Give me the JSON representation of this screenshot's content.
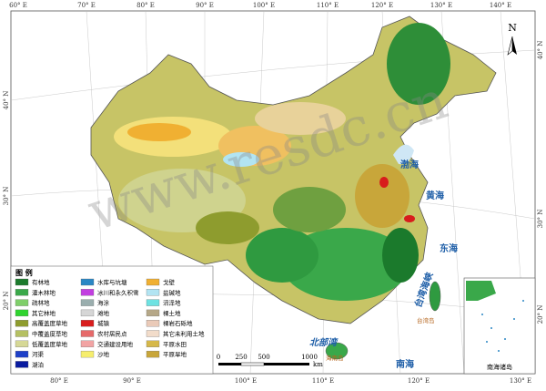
{
  "map": {
    "graticule": {
      "top": [
        "60° E",
        "70° E",
        "80° E",
        "90° E",
        "100° E",
        "110° E",
        "120° E",
        "130° E",
        "140° E"
      ],
      "bottom": [
        "80° E",
        "90° E",
        "100° E",
        "110° E",
        "120° E",
        "130° E"
      ],
      "left": [
        "40° N",
        "30° N",
        "20° N"
      ],
      "right": [
        "40° N",
        "30° N",
        "20° N"
      ]
    },
    "north": "N",
    "watermark": "www.resdc.cn",
    "seas": [
      "渤海",
      "黄海",
      "东海",
      "台湾海峡",
      "南海",
      "北部湾"
    ],
    "islands": [
      "海南岛",
      "台湾岛"
    ],
    "inset_label": "南海诸岛",
    "scale": {
      "ticks": [
        "0",
        "250",
        "500",
        "1000"
      ],
      "unit": "km"
    },
    "legend": {
      "title": "图 例",
      "items": [
        {
          "label": "有林地",
          "color": "#1b7a2c"
        },
        {
          "label": "灌木林地",
          "color": "#3aa84a"
        },
        {
          "label": "疏林地",
          "color": "#7fcf6a"
        },
        {
          "label": "其它林地",
          "color": "#2fd42f"
        },
        {
          "label": "高覆盖度草地",
          "color": "#8e9c2e"
        },
        {
          "label": "中覆盖度草地",
          "color": "#b5c062"
        },
        {
          "label": "低覆盖度草地",
          "color": "#d6d896"
        },
        {
          "label": "河渠",
          "color": "#1e40c8"
        },
        {
          "label": "湖泊",
          "color": "#0a1ca0"
        },
        {
          "label": "水库与坑塘",
          "color": "#2a86c4"
        },
        {
          "label": "冰川和永久积雪",
          "color": "#c23ee0"
        },
        {
          "label": "海涂",
          "color": "#9aaeae"
        },
        {
          "label": "滩地",
          "color": "#d6d6d6"
        },
        {
          "label": "城镇",
          "color": "#d81c1c"
        },
        {
          "label": "农村居民点",
          "color": "#e66a6a"
        },
        {
          "label": "交通建设用地",
          "color": "#f2a4a4"
        },
        {
          "label": "沙地",
          "color": "#f6ee6e"
        },
        {
          "label": "戈壁",
          "color": "#f0b032"
        },
        {
          "label": "盐碱地",
          "color": "#b2e4f2"
        },
        {
          "label": "沼泽地",
          "color": "#6ee2e2"
        },
        {
          "label": "裸土地",
          "color": "#b6a888"
        },
        {
          "label": "裸岩石砾地",
          "color": "#eacab8"
        },
        {
          "label": "其它未利用土地",
          "color": "#f2dcca"
        },
        {
          "label": "平原水田",
          "color": "#d6b84a"
        },
        {
          "label": "平原旱地",
          "color": "#c8a63a"
        }
      ]
    }
  }
}
